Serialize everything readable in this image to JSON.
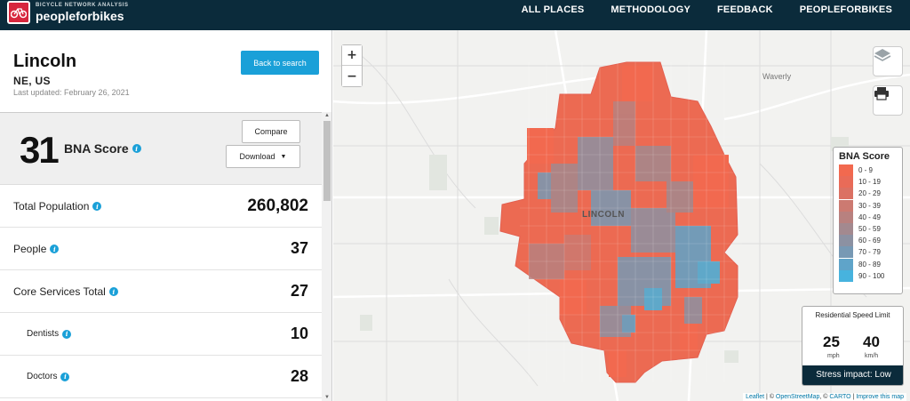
{
  "header": {
    "logo_small": "BICYCLE NETWORK ANALYSIS",
    "logo_big": "peopleforbikes",
    "nav": [
      "ALL PLACES",
      "METHODOLOGY",
      "FEEDBACK",
      "PEOPLEFORBIKES"
    ]
  },
  "city": {
    "name": "Lincoln",
    "region": "NE, US",
    "updated": "Last updated: February 26, 2021",
    "back_label": "Back to search"
  },
  "score": {
    "value": "31",
    "label": "BNA Score",
    "compare_label": "Compare",
    "download_label": "Download"
  },
  "metrics": [
    {
      "label": "Total Population",
      "value": "260,802"
    },
    {
      "label": "People",
      "value": "37"
    },
    {
      "label": "Core Services Total",
      "value": "27"
    },
    {
      "label": "Dentists",
      "value": "10"
    },
    {
      "label": "Doctors",
      "value": "28"
    }
  ],
  "map": {
    "city_label": "LINCOLN",
    "town_label": "Waverly",
    "zoom_in": "+",
    "zoom_out": "−",
    "attribution": {
      "leaflet": "Leaflet",
      "sep1": " | © ",
      "osm": "OpenStreetMap",
      "sep2": ", © ",
      "carto": "CARTO",
      "sep3": " | ",
      "improve": "Improve this map"
    }
  },
  "legend": {
    "title": "BNA Score",
    "items": [
      {
        "label": "0 - 9",
        "color": "#f2694f"
      },
      {
        "label": "10 - 19",
        "color": "#e96b58"
      },
      {
        "label": "20 - 29",
        "color": "#db7163"
      },
      {
        "label": "30 - 39",
        "color": "#cc7a71"
      },
      {
        "label": "40 - 49",
        "color": "#b8817f"
      },
      {
        "label": "50 - 59",
        "color": "#a3898f"
      },
      {
        "label": "60 - 69",
        "color": "#8c91a2"
      },
      {
        "label": "70 - 79",
        "color": "#7799b4"
      },
      {
        "label": "80 - 89",
        "color": "#5fa4c9"
      },
      {
        "label": "90 - 100",
        "color": "#47b3de"
      }
    ]
  },
  "speed": {
    "title": "Residential Speed Limit",
    "mph": "25",
    "mph_unit": "mph",
    "kmh": "40",
    "kmh_unit": "km/h",
    "stress": "Stress impact: Low"
  }
}
